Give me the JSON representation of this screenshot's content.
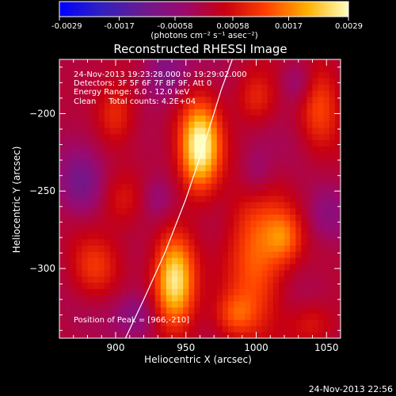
{
  "colorbar": {
    "tick_labels": [
      "-0.0029",
      "-0.0017",
      "-0.00058",
      "0.00058",
      "0.0017",
      "0.0029"
    ],
    "units_label": "(photons cm⁻² s⁻¹ asec⁻²)",
    "colormap": [
      "#0000ff",
      "#3020c0",
      "#6a1a90",
      "#9a0a70",
      "#c80010",
      "#ff4000",
      "#ffb000",
      "#ffffc0"
    ]
  },
  "footer": {
    "timestamp": "24-Nov-2013 22:56"
  },
  "chart_data": {
    "type": "heatmap",
    "title": "Reconstructed RHESSI Image",
    "xlabel": "Heliocentric X (arcsec)",
    "ylabel": "Heliocentric Y (arcsec)",
    "xlim": [
      860,
      1060
    ],
    "ylim": [
      -345,
      -165
    ],
    "x_ticks": [
      900,
      950,
      1000,
      1050
    ],
    "y_ticks": [
      -200,
      -250,
      -300
    ],
    "value_range": [
      -0.0029,
      0.0029
    ],
    "annotations": [
      "24-Nov-2013 19:23:28.000 to 19:29:02.000",
      "Detectors: 3F 5F 6F 7F 8F 9F, Att 0",
      "Energy Range: 6.0 - 12.0 keV",
      "Clean     Total counts: 4.2E+04"
    ],
    "peak_label": "Position of Peak = [966,-210]",
    "peak": [
      966,
      -210
    ],
    "limb_curve": [
      [
        907,
        -345
      ],
      [
        920,
        -320
      ],
      [
        935,
        -290
      ],
      [
        950,
        -255
      ],
      [
        963,
        -220
      ],
      [
        975,
        -185
      ],
      [
        983,
        -165
      ]
    ],
    "sources": [
      {
        "x": 960,
        "y": -222,
        "sx": 10,
        "sy": 20,
        "amp": 1.0
      },
      {
        "x": 942,
        "y": -307,
        "sx": 10,
        "sy": 20,
        "amp": 0.93
      },
      {
        "x": 1000,
        "y": -290,
        "sx": 14,
        "sy": 34,
        "amp": 0.52
      },
      {
        "x": 1045,
        "y": -195,
        "sx": 10,
        "sy": 20,
        "amp": 0.42
      },
      {
        "x": 1020,
        "y": -280,
        "sx": 9,
        "sy": 12,
        "amp": 0.4
      },
      {
        "x": 900,
        "y": -200,
        "sx": 10,
        "sy": 14,
        "amp": 0.35
      },
      {
        "x": 885,
        "y": -300,
        "sx": 12,
        "sy": 14,
        "amp": 0.36
      },
      {
        "x": 985,
        "y": -330,
        "sx": 10,
        "sy": 10,
        "amp": 0.35
      },
      {
        "x": 1000,
        "y": -190,
        "sx": 10,
        "sy": 12,
        "amp": 0.3
      },
      {
        "x": 905,
        "y": -255,
        "sx": 10,
        "sy": 12,
        "amp": 0.2
      },
      {
        "x": 1040,
        "y": -335,
        "sx": 12,
        "sy": 10,
        "amp": 0.25
      }
    ],
    "negative_regions": [
      {
        "x": 875,
        "y": -245,
        "sx": 11,
        "sy": 14,
        "amp": 0.35
      },
      {
        "x": 935,
        "y": -175,
        "sx": 10,
        "sy": 12,
        "amp": 0.3
      },
      {
        "x": 930,
        "y": -255,
        "sx": 8,
        "sy": 10,
        "amp": 0.2
      },
      {
        "x": 1000,
        "y": -240,
        "sx": 9,
        "sy": 14,
        "amp": 0.28
      },
      {
        "x": 1030,
        "y": -180,
        "sx": 9,
        "sy": 10,
        "amp": 0.24
      },
      {
        "x": 915,
        "y": -330,
        "sx": 10,
        "sy": 10,
        "amp": 0.26
      },
      {
        "x": 1050,
        "y": -265,
        "sx": 10,
        "sy": 12,
        "amp": 0.22
      }
    ]
  }
}
